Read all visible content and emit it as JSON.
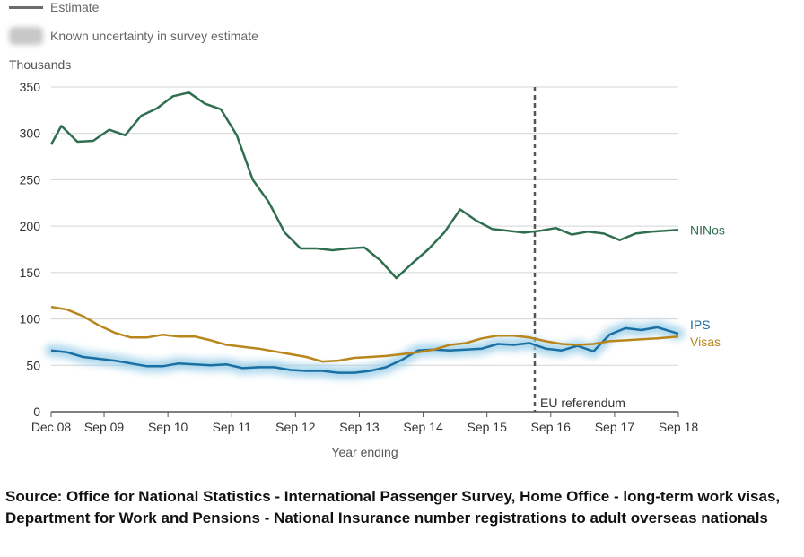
{
  "legend": {
    "estimate_label": "Estimate",
    "uncertainty_label": "Known uncertainty in survey estimate"
  },
  "chart_data": {
    "type": "line",
    "ylabel": "Thousands",
    "xlabel": "Year ending",
    "ylim": [
      0,
      350
    ],
    "yticks": [
      0,
      50,
      100,
      150,
      200,
      250,
      300,
      350
    ],
    "xlim": [
      2008.92,
      2018.75
    ],
    "xticks": [
      {
        "label": "Dec 08",
        "x": 2008.92
      },
      {
        "label": "Sep 09",
        "x": 2009.75
      },
      {
        "label": "Sep 10",
        "x": 2010.75
      },
      {
        "label": "Sep 11",
        "x": 2011.75
      },
      {
        "label": "Sep 12",
        "x": 2012.75
      },
      {
        "label": "Sep 13",
        "x": 2013.75
      },
      {
        "label": "Sep 14",
        "x": 2014.75
      },
      {
        "label": "Sep 15",
        "x": 2015.75
      },
      {
        "label": "Sep 16",
        "x": 2016.75
      },
      {
        "label": "Sep 17",
        "x": 2017.75
      },
      {
        "label": "Sep 18",
        "x": 2018.75
      }
    ],
    "grid": true,
    "annotation": {
      "label": "EU referendum",
      "x": 2016.5
    },
    "series": [
      {
        "name": "NINos",
        "color": "#2f6f4f",
        "points": [
          [
            2008.92,
            288
          ],
          [
            2009.08,
            308
          ],
          [
            2009.33,
            291
          ],
          [
            2009.58,
            292
          ],
          [
            2009.83,
            304
          ],
          [
            2010.08,
            298
          ],
          [
            2010.33,
            319
          ],
          [
            2010.58,
            327
          ],
          [
            2010.83,
            340
          ],
          [
            2011.08,
            344
          ],
          [
            2011.33,
            332
          ],
          [
            2011.58,
            326
          ],
          [
            2011.83,
            298
          ],
          [
            2012.08,
            250
          ],
          [
            2012.33,
            226
          ],
          [
            2012.58,
            193
          ],
          [
            2012.83,
            176
          ],
          [
            2013.08,
            176
          ],
          [
            2013.33,
            174
          ],
          [
            2013.58,
            176
          ],
          [
            2013.83,
            177
          ],
          [
            2014.08,
            163
          ],
          [
            2014.33,
            144
          ],
          [
            2014.58,
            160
          ],
          [
            2014.83,
            175
          ],
          [
            2015.08,
            193
          ],
          [
            2015.33,
            218
          ],
          [
            2015.58,
            206
          ],
          [
            2015.83,
            197
          ],
          [
            2016.08,
            195
          ],
          [
            2016.33,
            193
          ],
          [
            2016.58,
            195
          ],
          [
            2016.83,
            198
          ],
          [
            2017.08,
            191
          ],
          [
            2017.33,
            194
          ],
          [
            2017.58,
            192
          ],
          [
            2017.83,
            185
          ],
          [
            2018.08,
            192
          ],
          [
            2018.33,
            194
          ],
          [
            2018.75,
            196
          ]
        ]
      },
      {
        "name": "IPS",
        "color": "#1a6fa3",
        "uncertainty": true,
        "points": [
          [
            2008.92,
            66
          ],
          [
            2009.17,
            64
          ],
          [
            2009.42,
            59
          ],
          [
            2009.67,
            57
          ],
          [
            2009.92,
            55
          ],
          [
            2010.17,
            52
          ],
          [
            2010.42,
            49
          ],
          [
            2010.67,
            49
          ],
          [
            2010.92,
            52
          ],
          [
            2011.17,
            51
          ],
          [
            2011.42,
            50
          ],
          [
            2011.67,
            51
          ],
          [
            2011.92,
            47
          ],
          [
            2012.17,
            48
          ],
          [
            2012.42,
            48
          ],
          [
            2012.67,
            45
          ],
          [
            2012.92,
            44
          ],
          [
            2013.17,
            44
          ],
          [
            2013.42,
            42
          ],
          [
            2013.67,
            42
          ],
          [
            2013.92,
            44
          ],
          [
            2014.17,
            48
          ],
          [
            2014.42,
            56
          ],
          [
            2014.67,
            66
          ],
          [
            2014.92,
            67
          ],
          [
            2015.17,
            66
          ],
          [
            2015.42,
            67
          ],
          [
            2015.67,
            68
          ],
          [
            2015.92,
            73
          ],
          [
            2016.17,
            72
          ],
          [
            2016.42,
            74
          ],
          [
            2016.67,
            68
          ],
          [
            2016.92,
            66
          ],
          [
            2017.17,
            71
          ],
          [
            2017.42,
            65
          ],
          [
            2017.67,
            83
          ],
          [
            2017.92,
            90
          ],
          [
            2018.17,
            88
          ],
          [
            2018.42,
            91
          ],
          [
            2018.75,
            84
          ]
        ]
      },
      {
        "name": "Visas",
        "color": "#b8861b",
        "points": [
          [
            2008.92,
            113
          ],
          [
            2009.17,
            110
          ],
          [
            2009.42,
            103
          ],
          [
            2009.67,
            93
          ],
          [
            2009.92,
            85
          ],
          [
            2010.17,
            80
          ],
          [
            2010.42,
            80
          ],
          [
            2010.67,
            83
          ],
          [
            2010.92,
            81
          ],
          [
            2011.17,
            81
          ],
          [
            2011.42,
            77
          ],
          [
            2011.67,
            72
          ],
          [
            2011.92,
            70
          ],
          [
            2012.17,
            68
          ],
          [
            2012.42,
            65
          ],
          [
            2012.67,
            62
          ],
          [
            2012.92,
            59
          ],
          [
            2013.17,
            54
          ],
          [
            2013.42,
            55
          ],
          [
            2013.67,
            58
          ],
          [
            2013.92,
            59
          ],
          [
            2014.17,
            60
          ],
          [
            2014.42,
            62
          ],
          [
            2014.67,
            64
          ],
          [
            2014.92,
            67
          ],
          [
            2015.17,
            72
          ],
          [
            2015.42,
            74
          ],
          [
            2015.67,
            79
          ],
          [
            2015.92,
            82
          ],
          [
            2016.17,
            82
          ],
          [
            2016.42,
            80
          ],
          [
            2016.67,
            76
          ],
          [
            2016.92,
            73
          ],
          [
            2017.17,
            72
          ],
          [
            2017.42,
            73
          ],
          [
            2017.67,
            76
          ],
          [
            2017.92,
            77
          ],
          [
            2018.17,
            78
          ],
          [
            2018.42,
            79
          ],
          [
            2018.75,
            81
          ]
        ]
      }
    ]
  },
  "source_text": "Source: Office for National Statistics - International Passenger Survey, Home Office - long-term work visas, Department for Work and Pensions - National Insurance number registrations to adult overseas nationals"
}
